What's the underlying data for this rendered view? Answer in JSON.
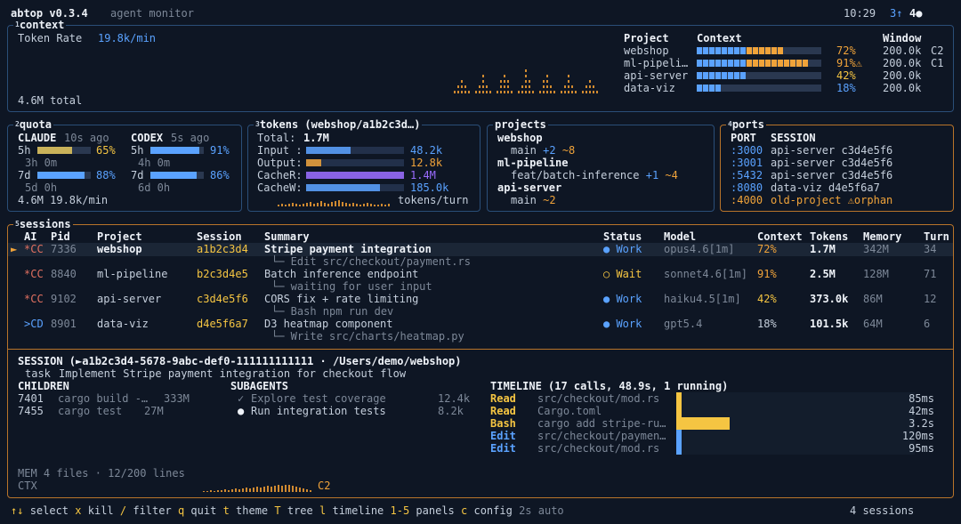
{
  "header": {
    "app": "abtop v0.3.4",
    "subtitle": "agent monitor",
    "time": "10:29",
    "up_count": "3↑",
    "active_count": "4●"
  },
  "context_panel": {
    "title_num": "1",
    "title": "context",
    "token_rate_label": "Token Rate",
    "token_rate_value": "19.8k/min",
    "total": "4.6M total",
    "col_project": "Project",
    "col_context": "Context",
    "col_window": "Window",
    "rows": [
      {
        "project": "webshop",
        "pct_label": "72%",
        "pct": 0.72,
        "color": "#f0a33a",
        "window": "200.0k",
        "tag": "C2"
      },
      {
        "project": "ml-pipeli…",
        "pct_label": "91%⚠",
        "pct": 0.91,
        "color": "#f0a33a",
        "window": "200.0k",
        "tag": "C1"
      },
      {
        "project": "api-server",
        "pct_label": "42%",
        "pct": 0.42,
        "color": "#f5c542",
        "window": "200.0k",
        "tag": ""
      },
      {
        "project": "data-viz",
        "pct_label": "18%",
        "pct": 0.18,
        "color": "#5aa2ff",
        "window": "200.0k",
        "tag": ""
      }
    ]
  },
  "quota_panel": {
    "title_num": "2",
    "title": "quota",
    "claude": {
      "name": "CLAUDE",
      "ago": "10s ago",
      "h5_label": "5h",
      "h5_pct": "65%",
      "h5_val": 0.65,
      "h5_reset": "3h 0m",
      "d7_label": "7d",
      "d7_pct": "88%",
      "d7_val": 0.88,
      "d7_reset": "5d 0h"
    },
    "codex": {
      "name": "CODEX",
      "ago": "5s ago",
      "h5_label": "5h",
      "h5_pct": "91%",
      "h5_val": 0.91,
      "h5_reset": "4h 0m",
      "d7_label": "7d",
      "d7_pct": "86%",
      "d7_val": 0.86,
      "d7_reset": "6d 0h"
    },
    "footer": "4.6M 19.8k/min"
  },
  "tokens_panel": {
    "title_num": "3",
    "title": "tokens (webshop/a1b2c3d…)",
    "total_label": "Total:",
    "total_value": "1.7M",
    "rows": [
      {
        "label": "Input :",
        "value": "48.2k",
        "frac": 0.45,
        "color": "#5aa2ff"
      },
      {
        "label": "Output:",
        "value": "12.8k",
        "frac": 0.15,
        "color": "#f0a33a"
      },
      {
        "label": "CacheR:",
        "value": "1.4M",
        "frac": 1.0,
        "color": "#9b6cff"
      },
      {
        "label": "CacheW:",
        "value": "185.0k",
        "frac": 0.75,
        "color": "#5aa2ff"
      }
    ],
    "sparkline_label": "tokens/turn"
  },
  "projects_panel": {
    "title": "projects",
    "items": [
      {
        "name": "webshop",
        "branch": "main",
        "plus": "+2",
        "tilde": "~8"
      },
      {
        "name": "ml-pipeline",
        "branch": "feat/batch-inference",
        "plus": "+1",
        "tilde": "~4"
      },
      {
        "name": "api-server",
        "branch": "main",
        "plus": "",
        "tilde": "~2"
      }
    ]
  },
  "ports_panel": {
    "title_num": "4",
    "title": "ports",
    "col_port": "PORT",
    "col_session": "SESSION",
    "rows": [
      {
        "port": ":3000",
        "session": "api-server c3d4e5f6",
        "orphan": false
      },
      {
        "port": ":3001",
        "session": "api-server c3d4e5f6",
        "orphan": false
      },
      {
        "port": ":5432",
        "session": "api-server c3d4e5f6",
        "orphan": false
      },
      {
        "port": ":8080",
        "session": "data-viz d4e5f6a7",
        "orphan": false
      },
      {
        "port": ":4000",
        "session": "old-project ⚠orphan",
        "orphan": true
      }
    ]
  },
  "sessions_panel": {
    "title_num": "5",
    "title": "sessions",
    "cols": {
      "ai": "AI",
      "pid": "Pid",
      "project": "Project",
      "session": "Session",
      "summary": "Summary",
      "status": "Status",
      "model": "Model",
      "context": "Context",
      "tokens": "Tokens",
      "memory": "Memory",
      "turn": "Turn"
    },
    "rows": [
      {
        "marker": "►",
        "ai": "*CC",
        "pid": "7336",
        "project": "webshop",
        "session": "a1b2c3d4",
        "summary": "Stripe payment integration",
        "sub": "└─ Edit src/checkout/payment.rs",
        "status": "● Work",
        "model": "opus4.6[1m]",
        "context": "72%",
        "tokens": "1.7M",
        "memory": "342M",
        "turn": "34"
      },
      {
        "marker": "",
        "ai": "*CC",
        "pid": "8840",
        "project": "ml-pipeline",
        "session": "b2c3d4e5",
        "summary": "Batch inference endpoint",
        "sub": "└─ waiting for user input",
        "status": "○ Wait",
        "model": "sonnet4.6[1m]",
        "context": "91%",
        "tokens": "2.5M",
        "memory": "128M",
        "turn": "71"
      },
      {
        "marker": "",
        "ai": "*CC",
        "pid": "9102",
        "project": "api-server",
        "session": "c3d4e5f6",
        "summary": "CORS fix + rate limiting",
        "sub": "└─ Bash npm run dev",
        "status": "● Work",
        "model": "haiku4.5[1m]",
        "context": "42%",
        "tokens": "373.0k",
        "memory": "86M",
        "turn": "12"
      },
      {
        "marker": "",
        "ai": ">CD",
        "pid": "8901",
        "project": "data-viz",
        "session": "d4e5f6a7",
        "summary": "D3 heatmap component",
        "sub": "└─ Write src/charts/heatmap.py",
        "status": "● Work",
        "model": "gpt5.4",
        "context": "18%",
        "tokens": "101.5k",
        "memory": "64M",
        "turn": "6"
      }
    ],
    "detail": {
      "session_line": "SESSION (►a1b2c3d4-5678-9abc-def0-111111111111 · /Users/demo/webshop)",
      "task_label": "task",
      "task": "Implement Stripe payment integration for checkout flow",
      "children_title": "CHILDREN",
      "children": [
        {
          "pid": "7401",
          "cmd": "cargo build -…",
          "mem": "333M"
        },
        {
          "pid": "7455",
          "cmd": "cargo test",
          "mem": "27M"
        }
      ],
      "subagents_title": "SUBAGENTS",
      "subagents": [
        {
          "mark": "✓",
          "name": "Explore test coverage",
          "tokens": "12.4k"
        },
        {
          "mark": "●",
          "name": "Run integration tests",
          "tokens": "8.2k"
        }
      ],
      "timeline_title": "TIMELINE (17 calls, 48.9s, 1 running)",
      "timeline": [
        {
          "tool": "Read",
          "arg": "src/checkout/mod.rs",
          "dur": "85ms",
          "color": "#f5c542"
        },
        {
          "tool": "Read",
          "arg": "Cargo.toml",
          "dur": "42ms",
          "color": "#f5c542"
        },
        {
          "tool": "Bash",
          "arg": "cargo add stripe-ru…",
          "dur": "3.2s",
          "color": "#f5c542"
        },
        {
          "tool": "Edit",
          "arg": "src/checkout/paymen…",
          "dur": "120ms",
          "color": "#5aa2ff"
        },
        {
          "tool": "Edit",
          "arg": "src/checkout/mod.rs",
          "dur": "95ms",
          "color": "#5aa2ff"
        }
      ],
      "mem_line": "MEM 4 files · 12/200 lines",
      "ctx_label": "CTX",
      "ctx_tag": "C2"
    }
  },
  "footer": {
    "keys": [
      {
        "k": "↑↓",
        "a": "select"
      },
      {
        "k": "x",
        "a": "kill"
      },
      {
        "k": "/",
        "a": "filter"
      },
      {
        "k": "q",
        "a": "quit"
      },
      {
        "k": "t",
        "a": "theme"
      },
      {
        "k": "T",
        "a": "tree"
      },
      {
        "k": "l",
        "a": "timeline"
      },
      {
        "k": "1-5",
        "a": "panels"
      },
      {
        "k": "c",
        "a": "config"
      }
    ],
    "refresh": "2s auto",
    "session_count": "4 sessions"
  },
  "colors": {
    "bg": "#0e1624",
    "border": "#2a4e78",
    "accent_orange": "#f0a33a",
    "accent_blue": "#5aa2ff",
    "accent_yellow": "#f5c542"
  }
}
